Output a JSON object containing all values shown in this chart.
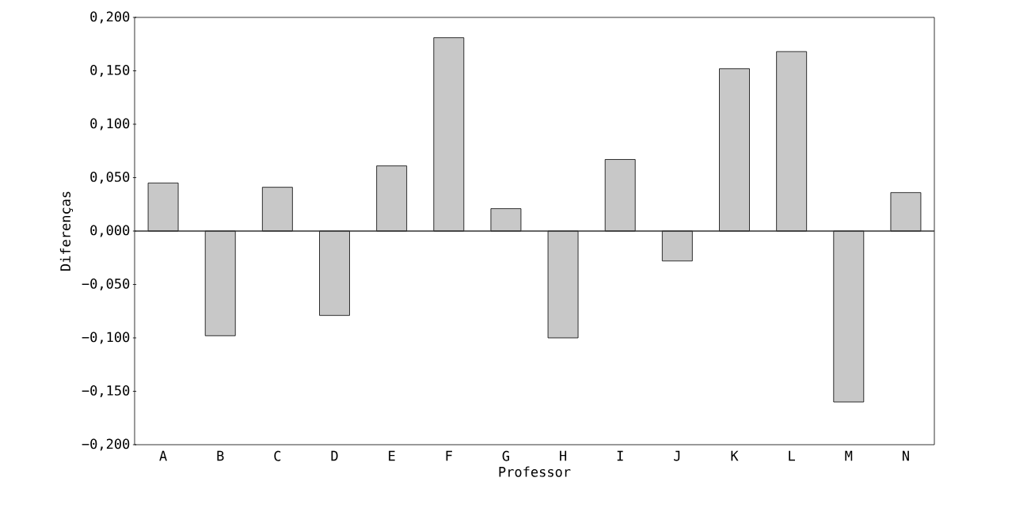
{
  "chart_data": {
    "type": "bar",
    "xlabel": "Professor",
    "ylabel": "Diferenças",
    "categories": [
      "A",
      "B",
      "C",
      "D",
      "E",
      "F",
      "G",
      "H",
      "I",
      "J",
      "K",
      "L",
      "M",
      "N"
    ],
    "values": [
      0.045,
      -0.098,
      0.041,
      -0.079,
      0.061,
      0.181,
      0.021,
      -0.1,
      0.067,
      -0.028,
      0.152,
      0.168,
      -0.16,
      0.036
    ],
    "color": "#c8c8c8",
    "ylim": [
      -0.2,
      0.2
    ],
    "yticks": [
      {
        "value": 0.2,
        "label": "0,200"
      },
      {
        "value": 0.15,
        "label": "0,150"
      },
      {
        "value": 0.1,
        "label": "0,100"
      },
      {
        "value": 0.05,
        "label": "0,050"
      },
      {
        "value": 0,
        "label": "0,000"
      },
      {
        "value": -0.05,
        "label": "−0,050"
      },
      {
        "value": -0.1,
        "label": "−0,100"
      },
      {
        "value": -0.15,
        "label": "−0,150"
      },
      {
        "value": -0.2,
        "label": "−0,200"
      }
    ],
    "ref_lines": [
      {
        "axis": "y",
        "value": 0,
        "color": "#333333"
      }
    ]
  }
}
